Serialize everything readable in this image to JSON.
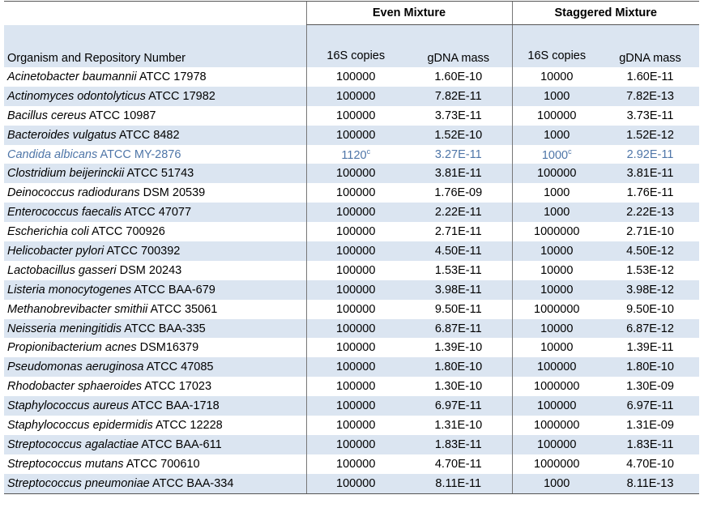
{
  "table": {
    "groups": [
      "Even Mixture",
      "Staggered Mixture"
    ],
    "columns": [
      "Organism and Repository Number",
      "16S copies",
      "gDNA mass",
      "16S copies",
      "gDNA mass"
    ],
    "rows": [
      {
        "species": "Acinetobacter baumannii",
        "strain": "ATCC 17978",
        "even_copies": "100000",
        "even_mass": "1.60E-10",
        "staggered_copies": "10000",
        "staggered_mass": "1.60E-11"
      },
      {
        "species": "Actinomyces odontolyticus",
        "strain": "ATCC 17982",
        "even_copies": "100000",
        "even_mass": "7.82E-11",
        "staggered_copies": "1000",
        "staggered_mass": "7.82E-13"
      },
      {
        "species": "Bacillus cereus",
        "strain": "ATCC 10987",
        "even_copies": "100000",
        "even_mass": "3.73E-11",
        "staggered_copies": "100000",
        "staggered_mass": "3.73E-11"
      },
      {
        "species": "Bacteroides vulgatus",
        "strain": "ATCC 8482",
        "even_copies": "100000",
        "even_mass": "1.52E-10",
        "staggered_copies": "1000",
        "staggered_mass": "1.52E-12"
      },
      {
        "species": "Candida albicans",
        "strain": "ATCC MY-2876",
        "even_copies": "1120",
        "even_copies_note": "c",
        "even_mass": "3.27E-11",
        "staggered_copies": "1000",
        "staggered_copies_note": "c",
        "staggered_mass": "2.92E-11",
        "color": "#4f76a8"
      },
      {
        "species": "Clostridium beijerinckii",
        "strain": "ATCC 51743",
        "even_copies": "100000",
        "even_mass": "3.81E-11",
        "staggered_copies": "100000",
        "staggered_mass": "3.81E-11"
      },
      {
        "species": "Deinococcus radiodurans",
        "strain": "DSM 20539",
        "even_copies": "100000",
        "even_mass": "1.76E-09",
        "staggered_copies": "1000",
        "staggered_mass": "1.76E-11"
      },
      {
        "species": "Enterococcus faecalis",
        "strain": "ATCC 47077",
        "even_copies": "100000",
        "even_mass": "2.22E-11",
        "staggered_copies": "1000",
        "staggered_mass": "2.22E-13"
      },
      {
        "species": "Escherichia coli",
        "strain": "ATCC 700926",
        "even_copies": "100000",
        "even_mass": "2.71E-11",
        "staggered_copies": "1000000",
        "staggered_mass": "2.71E-10"
      },
      {
        "species": "Helicobacter pylori",
        "strain": "ATCC 700392",
        "even_copies": "100000",
        "even_mass": "4.50E-11",
        "staggered_copies": "10000",
        "staggered_mass": "4.50E-12"
      },
      {
        "species": "Lactobacillus gasseri",
        "strain": "DSM 20243",
        "even_copies": "100000",
        "even_mass": "1.53E-11",
        "staggered_copies": "10000",
        "staggered_mass": "1.53E-12"
      },
      {
        "species": "Listeria monocytogenes",
        "strain": "ATCC BAA-679",
        "even_copies": "100000",
        "even_mass": "3.98E-11",
        "staggered_copies": "10000",
        "staggered_mass": "3.98E-12"
      },
      {
        "species": "Methanobrevibacter smithii",
        "strain": "ATCC 35061",
        "even_copies": "100000",
        "even_mass": "9.50E-11",
        "staggered_copies": "1000000",
        "staggered_mass": "9.50E-10"
      },
      {
        "species": "Neisseria meningitidis",
        "strain": "ATCC BAA-335",
        "even_copies": "100000",
        "even_mass": "6.87E-11",
        "staggered_copies": "10000",
        "staggered_mass": "6.87E-12"
      },
      {
        "species": "Propionibacterium acnes",
        "strain": "DSM16379",
        "even_copies": "100000",
        "even_mass": "1.39E-10",
        "staggered_copies": "10000",
        "staggered_mass": "1.39E-11"
      },
      {
        "species": "Pseudomonas aeruginosa",
        "strain": "ATCC 47085",
        "even_copies": "100000",
        "even_mass": "1.80E-10",
        "staggered_copies": "100000",
        "staggered_mass": "1.80E-10"
      },
      {
        "species": "Rhodobacter sphaeroides",
        "strain": "ATCC 17023",
        "even_copies": "100000",
        "even_mass": "1.30E-10",
        "staggered_copies": "1000000",
        "staggered_mass": "1.30E-09"
      },
      {
        "species": "Staphylococcus aureus",
        "strain": "ATCC BAA-1718",
        "even_copies": "100000",
        "even_mass": "6.97E-11",
        "staggered_copies": "100000",
        "staggered_mass": "6.97E-11"
      },
      {
        "species": "Staphylococcus epidermidis",
        "strain": "ATCC 12228",
        "even_copies": "100000",
        "even_mass": "1.31E-10",
        "staggered_copies": "1000000",
        "staggered_mass": "1.31E-09"
      },
      {
        "species": "Streptococcus agalactiae",
        "strain": "ATCC BAA-611",
        "even_copies": "100000",
        "even_mass": "1.83E-11",
        "staggered_copies": "100000",
        "staggered_mass": "1.83E-11"
      },
      {
        "species": "Streptococcus mutans",
        "strain": "ATCC 700610",
        "even_copies": "100000",
        "even_mass": "4.70E-11",
        "staggered_copies": "1000000",
        "staggered_mass": "4.70E-10"
      },
      {
        "species": "Streptococcus pneumoniae",
        "strain": "ATCC BAA-334",
        "even_copies": "100000",
        "even_mass": "8.11E-11",
        "staggered_copies": "1000",
        "staggered_mass": "8.11E-13"
      }
    ]
  }
}
